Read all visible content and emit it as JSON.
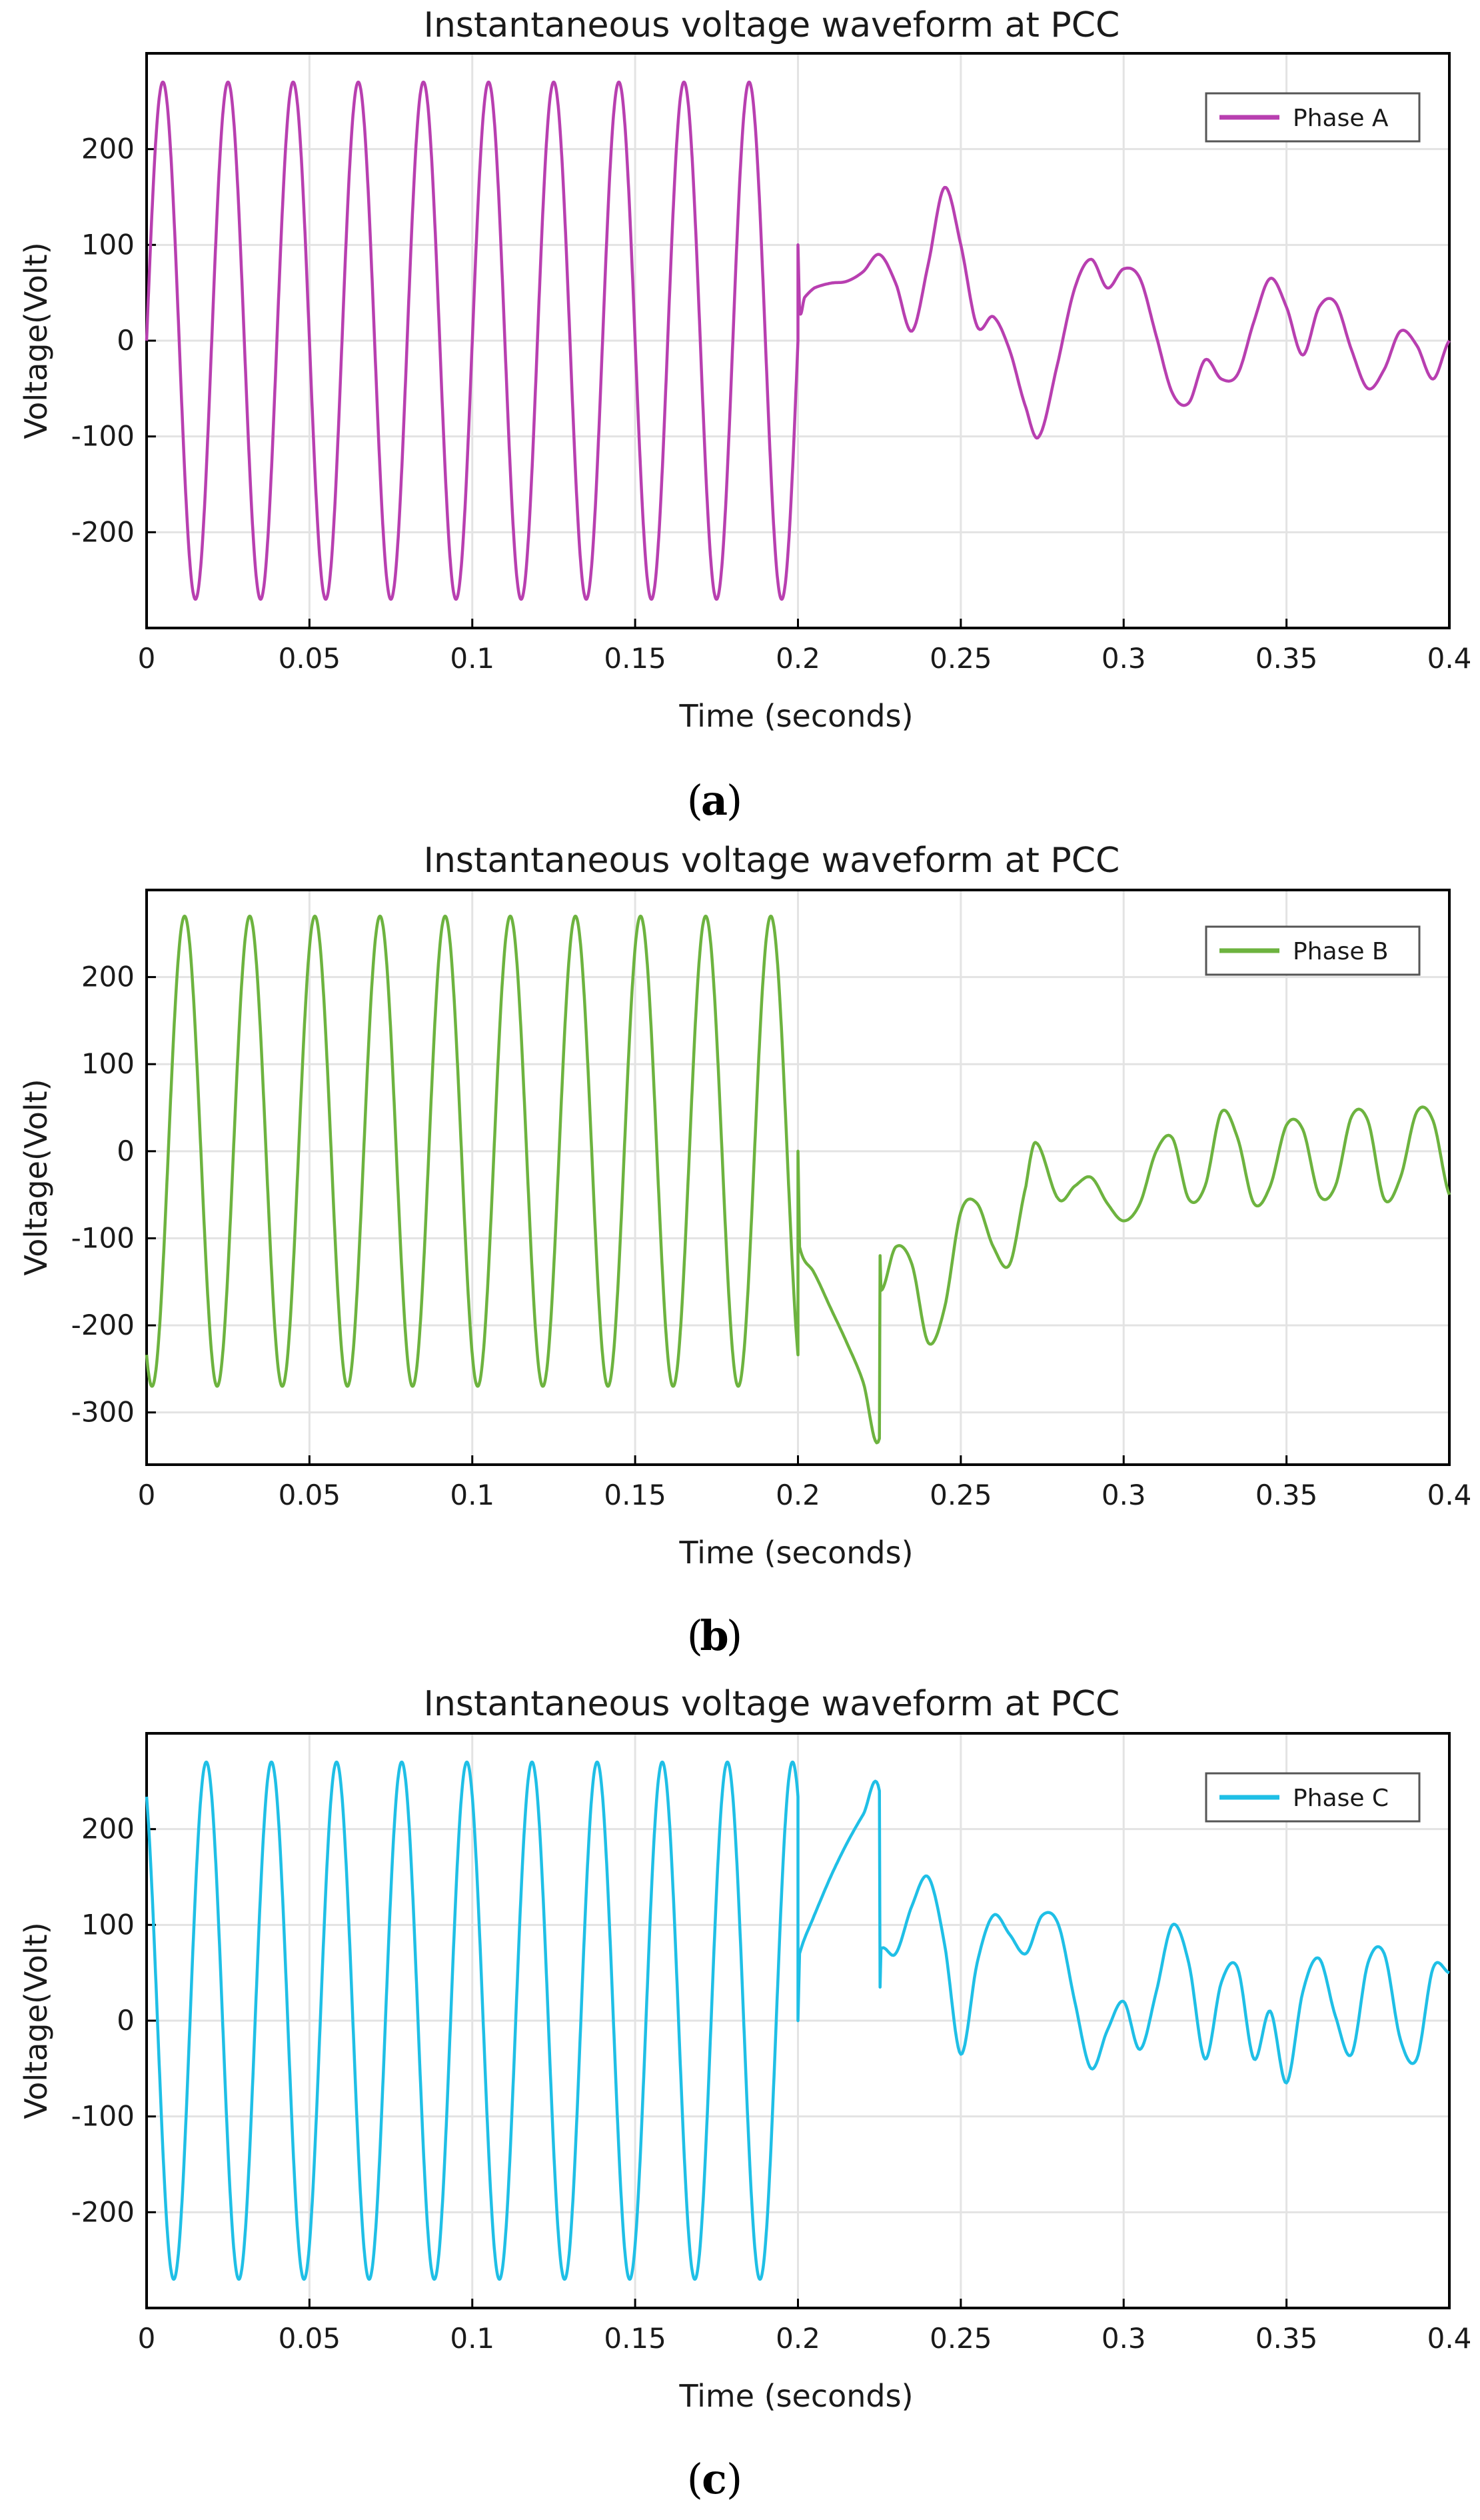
{
  "chart_data": [
    {
      "type": "line",
      "title": "Instantaneous voltage waveform at PCC",
      "xlabel": "Time (seconds)",
      "ylabel": "Voltage(Volt)",
      "xlim": [
        0,
        0.4
      ],
      "ylim": [
        -300,
        300
      ],
      "xticks": [
        0,
        0.05,
        0.1,
        0.15,
        0.2,
        0.25,
        0.3,
        0.35,
        0.4
      ],
      "xtick_labels": [
        "0",
        "0.05",
        "0.1",
        "0.15",
        "0.2",
        "0.25",
        "0.3",
        "0.35",
        "0.4"
      ],
      "yticks": [
        -200,
        -100,
        0,
        100,
        200
      ],
      "ytick_labels": [
        "-200",
        "-100",
        "0",
        "100",
        "200"
      ],
      "grid": true,
      "legend": "top-right",
      "caption_letter": "a",
      "series": [
        {
          "name": "Phase A",
          "color": "#b83fb0",
          "pre_fault": {
            "t_start": 0,
            "t_end": 0.2,
            "frequency_hz": 50,
            "amplitude": 270,
            "phase_deg": 0
          },
          "post_fault_points": [
            [
              0.2,
              100
            ],
            [
              0.2005,
              30
            ],
            [
              0.202,
              45
            ],
            [
              0.205,
              55
            ],
            [
              0.21,
              60
            ],
            [
              0.215,
              62
            ],
            [
              0.22,
              72
            ],
            [
              0.225,
              90
            ],
            [
              0.23,
              60
            ],
            [
              0.235,
              10
            ],
            [
              0.24,
              80
            ],
            [
              0.245,
              160
            ],
            [
              0.25,
              100
            ],
            [
              0.255,
              15
            ],
            [
              0.26,
              25
            ],
            [
              0.265,
              -10
            ],
            [
              0.27,
              -70
            ],
            [
              0.274,
              -100
            ],
            [
              0.28,
              -20
            ],
            [
              0.285,
              55
            ],
            [
              0.29,
              85
            ],
            [
              0.295,
              55
            ],
            [
              0.3,
              75
            ],
            [
              0.305,
              65
            ],
            [
              0.31,
              5
            ],
            [
              0.315,
              -55
            ],
            [
              0.32,
              -65
            ],
            [
              0.325,
              -20
            ],
            [
              0.33,
              -40
            ],
            [
              0.335,
              -35
            ],
            [
              0.34,
              20
            ],
            [
              0.345,
              65
            ],
            [
              0.35,
              35
            ],
            [
              0.355,
              -15
            ],
            [
              0.36,
              35
            ],
            [
              0.365,
              40
            ],
            [
              0.37,
              -10
            ],
            [
              0.375,
              -50
            ],
            [
              0.38,
              -30
            ],
            [
              0.385,
              10
            ],
            [
              0.39,
              -5
            ],
            [
              0.395,
              -40
            ],
            [
              0.4,
              0
            ]
          ]
        }
      ]
    },
    {
      "type": "line",
      "title": "Instantaneous voltage waveform at PCC",
      "xlabel": "Time (seconds)",
      "ylabel": "Voltage(Volt)",
      "xlim": [
        0,
        0.4
      ],
      "ylim": [
        -360,
        300
      ],
      "xticks": [
        0,
        0.05,
        0.1,
        0.15,
        0.2,
        0.25,
        0.3,
        0.35,
        0.4
      ],
      "xtick_labels": [
        "0",
        "0.05",
        "0.1",
        "0.15",
        "0.2",
        "0.25",
        "0.3",
        "0.35",
        "0.4"
      ],
      "yticks": [
        -300,
        -200,
        -100,
        0,
        100,
        200
      ],
      "ytick_labels": [
        "-300",
        "-200",
        "-100",
        "0",
        "100",
        "200"
      ],
      "grid": true,
      "legend": "top-right",
      "caption_letter": "b",
      "series": [
        {
          "name": "Phase B",
          "color": "#6db33f",
          "pre_fault": {
            "t_start": 0,
            "t_end": 0.2,
            "frequency_hz": 50,
            "amplitude": 270,
            "phase_deg": -120
          },
          "post_fault_points": [
            [
              0.2,
              0
            ],
            [
              0.2005,
              -110
            ],
            [
              0.205,
              -140
            ],
            [
              0.21,
              -180
            ],
            [
              0.215,
              -220
            ],
            [
              0.22,
              -265
            ],
            [
              0.225,
              -330
            ],
            [
              0.2252,
              -120
            ],
            [
              0.2255,
              -160
            ],
            [
              0.23,
              -110
            ],
            [
              0.235,
              -130
            ],
            [
              0.24,
              -220
            ],
            [
              0.245,
              -180
            ],
            [
              0.25,
              -70
            ],
            [
              0.255,
              -60
            ],
            [
              0.26,
              -110
            ],
            [
              0.265,
              -130
            ],
            [
              0.27,
              -40
            ],
            [
              0.273,
              10
            ],
            [
              0.28,
              -55
            ],
            [
              0.285,
              -40
            ],
            [
              0.29,
              -30
            ],
            [
              0.295,
              -60
            ],
            [
              0.3,
              -80
            ],
            [
              0.305,
              -60
            ],
            [
              0.31,
              0
            ],
            [
              0.315,
              15
            ],
            [
              0.32,
              -55
            ],
            [
              0.325,
              -40
            ],
            [
              0.33,
              45
            ],
            [
              0.335,
              15
            ],
            [
              0.34,
              -60
            ],
            [
              0.345,
              -40
            ],
            [
              0.35,
              30
            ],
            [
              0.355,
              25
            ],
            [
              0.36,
              -50
            ],
            [
              0.365,
              -40
            ],
            [
              0.37,
              40
            ],
            [
              0.375,
              35
            ],
            [
              0.38,
              -55
            ],
            [
              0.385,
              -30
            ],
            [
              0.39,
              45
            ],
            [
              0.395,
              35
            ],
            [
              0.4,
              -50
            ]
          ]
        }
      ]
    },
    {
      "type": "line",
      "title": "Instantaneous voltage waveform at PCC",
      "xlabel": "Time (seconds)",
      "ylabel": "Voltage(Volt)",
      "xlim": [
        0,
        0.4
      ],
      "ylim": [
        -300,
        300
      ],
      "xticks": [
        0,
        0.05,
        0.1,
        0.15,
        0.2,
        0.25,
        0.3,
        0.35,
        0.4
      ],
      "xtick_labels": [
        "0",
        "0.05",
        "0.1",
        "0.15",
        "0.2",
        "0.25",
        "0.3",
        "0.35",
        "0.4"
      ],
      "yticks": [
        -200,
        -100,
        0,
        100,
        200
      ],
      "ytick_labels": [
        "-200",
        "-100",
        "0",
        "100",
        "200"
      ],
      "grid": true,
      "legend": "top-right",
      "caption_letter": "c",
      "series": [
        {
          "name": "Phase C",
          "color": "#1fbfe6",
          "pre_fault": {
            "t_start": 0,
            "t_end": 0.2,
            "frequency_hz": 50,
            "amplitude": 270,
            "phase_deg": 120
          },
          "post_fault_points": [
            [
              0.2,
              0
            ],
            [
              0.2005,
              70
            ],
            [
              0.205,
              110
            ],
            [
              0.21,
              150
            ],
            [
              0.215,
              185
            ],
            [
              0.22,
              215
            ],
            [
              0.225,
              240
            ],
            [
              0.2252,
              35
            ],
            [
              0.2255,
              75
            ],
            [
              0.23,
              70
            ],
            [
              0.235,
              120
            ],
            [
              0.24,
              150
            ],
            [
              0.245,
              80
            ],
            [
              0.25,
              -35
            ],
            [
              0.255,
              60
            ],
            [
              0.26,
              110
            ],
            [
              0.265,
              90
            ],
            [
              0.27,
              70
            ],
            [
              0.275,
              110
            ],
            [
              0.28,
              100
            ],
            [
              0.285,
              20
            ],
            [
              0.29,
              -50
            ],
            [
              0.295,
              -10
            ],
            [
              0.3,
              20
            ],
            [
              0.305,
              -30
            ],
            [
              0.31,
              30
            ],
            [
              0.315,
              100
            ],
            [
              0.32,
              60
            ],
            [
              0.325,
              -40
            ],
            [
              0.33,
              40
            ],
            [
              0.335,
              55
            ],
            [
              0.34,
              -40
            ],
            [
              0.345,
              10
            ],
            [
              0.35,
              -65
            ],
            [
              0.355,
              30
            ],
            [
              0.36,
              65
            ],
            [
              0.365,
              5
            ],
            [
              0.37,
              -35
            ],
            [
              0.375,
              60
            ],
            [
              0.38,
              70
            ],
            [
              0.385,
              -20
            ],
            [
              0.39,
              -40
            ],
            [
              0.395,
              55
            ],
            [
              0.4,
              50
            ]
          ]
        }
      ]
    }
  ]
}
